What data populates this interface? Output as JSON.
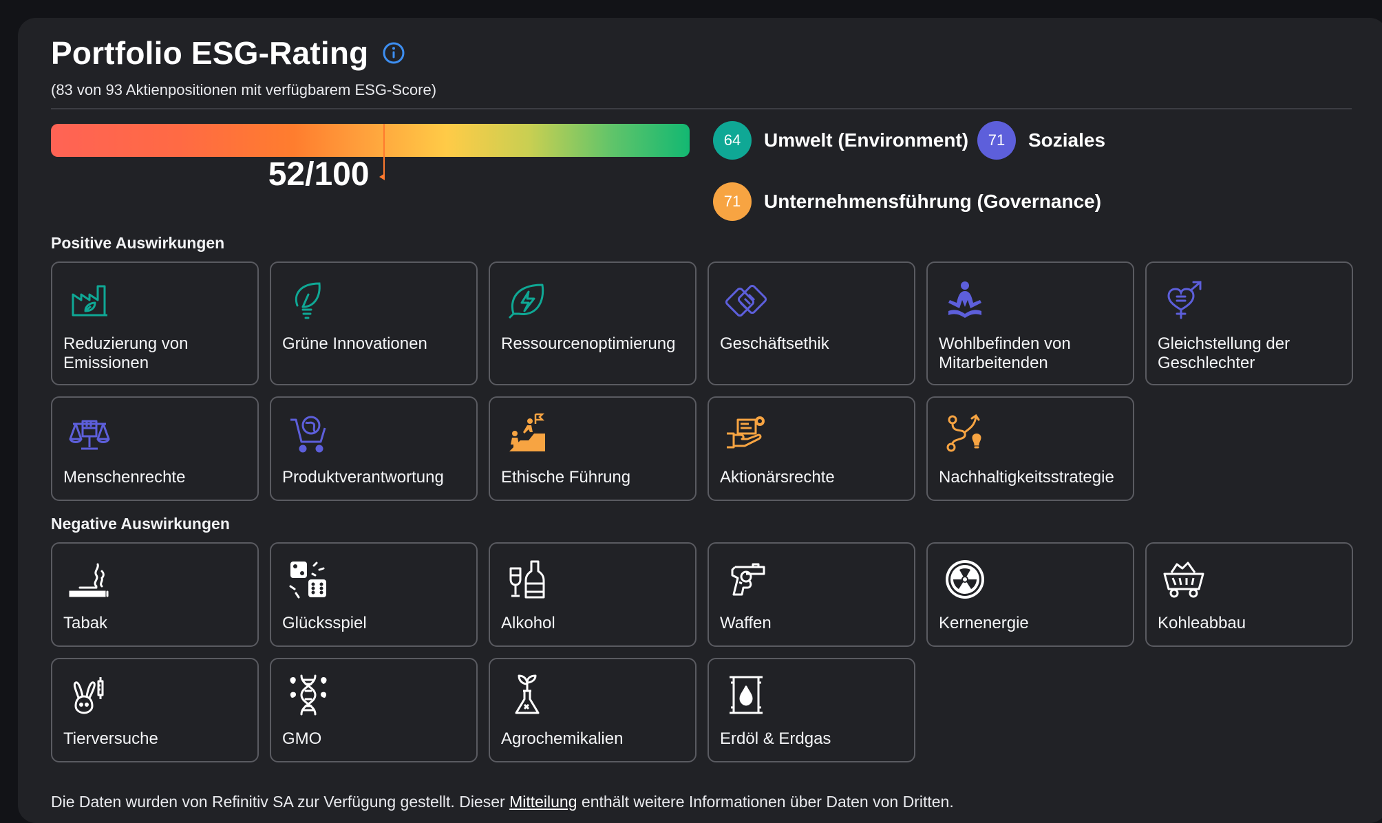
{
  "header": {
    "title": "Portfolio ESG-Rating",
    "subtitle": "(83 von 93 Aktienpositionen mit verfügbarem ESG-Score)"
  },
  "rating": {
    "score_label": "52/100",
    "score": 52,
    "max": 100
  },
  "pillars": [
    {
      "score": "64",
      "label": "Umwelt (Environment)",
      "color": "#0fa895"
    },
    {
      "score": "71",
      "label": "Soziales",
      "color": "#5d5fdb"
    },
    {
      "score": "71",
      "label": "Unternehmensführung (Governance)",
      "color": "#f7a442"
    }
  ],
  "positive": {
    "title": "Positive Auswirkungen",
    "items": [
      {
        "label": "Reduzierung von Emissionen",
        "icon": "factory-leaf-icon",
        "color": "#0fa895"
      },
      {
        "label": "Grüne Innovationen",
        "icon": "leaf-bulb-icon",
        "color": "#0fa895"
      },
      {
        "label": "Ressourcenoptimierung",
        "icon": "leaf-bolt-icon",
        "color": "#0fa895"
      },
      {
        "label": "Geschäftsethik",
        "icon": "handshake-icon",
        "color": "#5d5fdb"
      },
      {
        "label": "Wohlbefinden von Mitarbeitenden",
        "icon": "meditation-icon",
        "color": "#5d5fdb"
      },
      {
        "label": "Gleichstellung der Geschlechter",
        "icon": "gender-icon",
        "color": "#5d5fdb"
      },
      {
        "label": "Menschenrechte",
        "icon": "fist-scales-icon",
        "color": "#5d5fdb"
      },
      {
        "label": "Produktverantwortung",
        "icon": "globe-cart-icon",
        "color": "#5d5fdb"
      },
      {
        "label": "Ethische Führung",
        "icon": "climbing-leader-icon",
        "color": "#f7a442"
      },
      {
        "label": "Aktionärsrechte",
        "icon": "hand-document-icon",
        "color": "#f7a442"
      },
      {
        "label": "Nachhaltigkeitsstrategie",
        "icon": "strategy-path-icon",
        "color": "#f7a442"
      }
    ]
  },
  "negative": {
    "title": "Negative Auswirkungen",
    "items": [
      {
        "label": "Tabak",
        "icon": "cigarette-icon"
      },
      {
        "label": "Glücksspiel",
        "icon": "dice-icon"
      },
      {
        "label": "Alkohol",
        "icon": "bottle-glass-icon"
      },
      {
        "label": "Waffen",
        "icon": "revolver-icon"
      },
      {
        "label": "Kernenergie",
        "icon": "radiation-icon"
      },
      {
        "label": "Kohleabbau",
        "icon": "coal-cart-icon"
      },
      {
        "label": "Tierversuche",
        "icon": "rabbit-syringe-icon"
      },
      {
        "label": "GMO",
        "icon": "dna-icon"
      },
      {
        "label": "Agrochemikalien",
        "icon": "flask-plant-icon"
      },
      {
        "label": "Erdöl & Erdgas",
        "icon": "oil-barrel-icon"
      }
    ]
  },
  "footer": {
    "before": "Die Daten wurden von Refinitiv SA zur Verfügung gestellt. Dieser ",
    "link": "Mitteilung",
    "after": " enthält weitere Informationen über Daten von Dritten."
  }
}
